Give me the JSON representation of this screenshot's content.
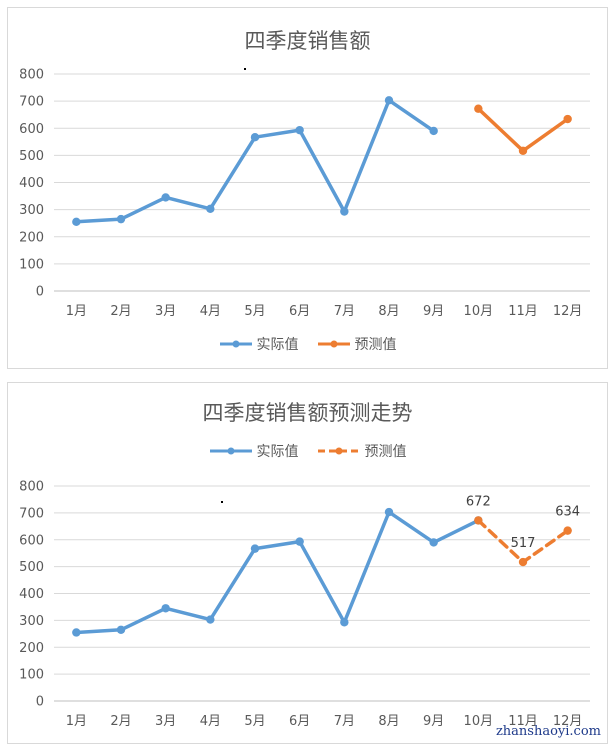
{
  "chart_data": [
    {
      "type": "line",
      "title": "四季度销售额",
      "categories": [
        "1月",
        "2月",
        "3月",
        "4月",
        "5月",
        "6月",
        "7月",
        "8月",
        "9月",
        "10月",
        "11月",
        "12月"
      ],
      "yticks": [
        "0",
        "100",
        "200",
        "300",
        "400",
        "500",
        "600",
        "700",
        "800"
      ],
      "ylim": [
        0,
        800
      ],
      "grid": true,
      "legend_position": "bottom",
      "series": [
        {
          "name": "实际值",
          "color": "#5B9BD5",
          "style": "solid",
          "values": [
            255,
            265,
            345,
            303,
            567,
            593,
            293,
            703,
            590,
            null,
            null,
            null
          ]
        },
        {
          "name": "预测值",
          "color": "#ED7D31",
          "style": "solid",
          "values": [
            null,
            null,
            null,
            null,
            null,
            null,
            null,
            null,
            null,
            672,
            517,
            634
          ]
        }
      ]
    },
    {
      "type": "line",
      "title": "四季度销售额预测走势",
      "categories": [
        "1月",
        "2月",
        "3月",
        "4月",
        "5月",
        "6月",
        "7月",
        "8月",
        "9月",
        "10月",
        "11月",
        "12月"
      ],
      "yticks": [
        "0",
        "100",
        "200",
        "300",
        "400",
        "500",
        "600",
        "700",
        "800"
      ],
      "ylim": [
        0,
        800
      ],
      "grid": true,
      "legend_position": "top",
      "series": [
        {
          "name": "实际值",
          "color": "#5B9BD5",
          "style": "solid",
          "values": [
            255,
            265,
            345,
            303,
            567,
            593,
            293,
            703,
            590,
            672,
            null,
            null
          ]
        },
        {
          "name": "预测值",
          "color": "#ED7D31",
          "style": "dashed",
          "values": [
            null,
            null,
            null,
            null,
            null,
            null,
            null,
            null,
            null,
            672,
            517,
            634
          ]
        }
      ],
      "data_labels": [
        {
          "index": 9,
          "text": "672"
        },
        {
          "index": 10,
          "text": "517"
        },
        {
          "index": 11,
          "text": "634"
        }
      ]
    }
  ],
  "watermark": "zhanshaoyi.com"
}
